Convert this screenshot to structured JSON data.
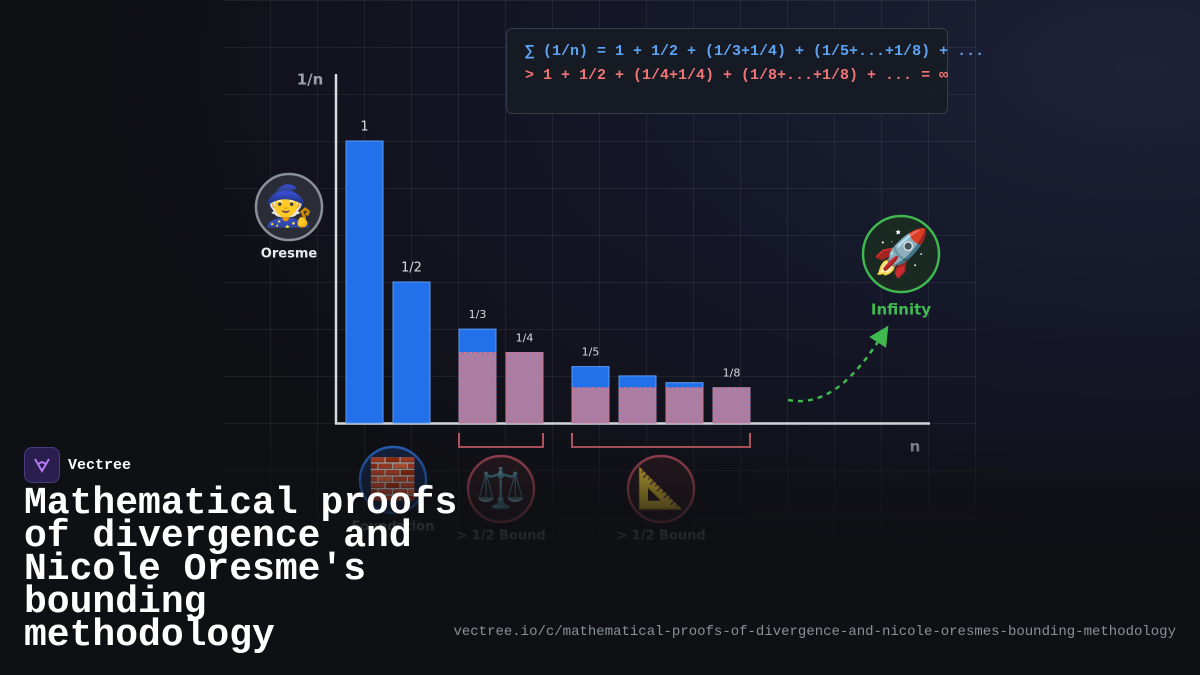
{
  "brand": "Vectree",
  "title": "Mathematical proofs of divergence and Nicole Oresme's bounding methodology",
  "url": "vectree.io/c/mathematical-proofs-of-divergence-and-nicole-oresmes-bounding-methodology",
  "formula": [
    "∑ (1/n) = 1 + 1/2 + (1/3+1/4) + (1/5+...+1/8) + ...",
    "> 1 + 1/2 + (1/4+1/4) + (1/8+...+1/8) + ... = ∞"
  ],
  "badges": [
    {
      "icon": "🧙",
      "label": "Oresme"
    },
    {
      "icon": "🧱",
      "label": "Foundation"
    },
    {
      "icon": "⚖️",
      "label": "> 1/2 Bound"
    },
    {
      "icon": "📐",
      "label": "> 1/2 Bound"
    },
    {
      "icon": "🚀",
      "label": "Infinity"
    }
  ],
  "chart_data": {
    "type": "bar",
    "x_label": "n",
    "y_label": "1/n",
    "categories": [
      null,
      null,
      null,
      null,
      null,
      null,
      null,
      null
    ],
    "values": [
      1,
      0.5,
      0.333,
      0.25,
      0.2,
      0.167,
      0.143,
      0.125
    ],
    "value_labels": [
      "1",
      "1/2",
      "1/3",
      "1/4",
      "1/5",
      null,
      null,
      "1/8"
    ],
    "lower_bounds": [
      null,
      null,
      0.25,
      0.25,
      0.125,
      0.125,
      0.125,
      0.125
    ],
    "color": "#2271ea",
    "bound_color": "#c47f97",
    "ylim": [
      0,
      1.234
    ]
  }
}
